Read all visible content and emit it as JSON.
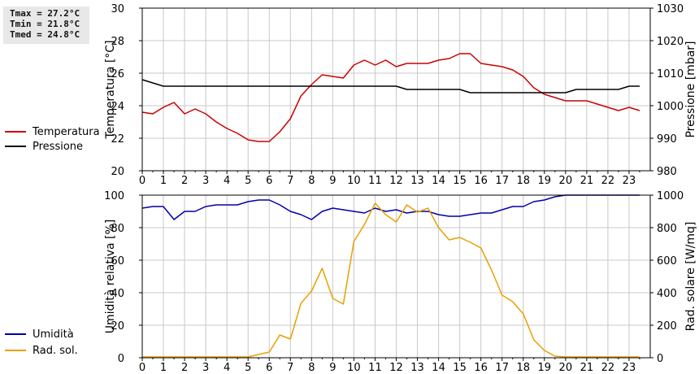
{
  "stats": {
    "tmax": "Tmax = 27.2°C",
    "tmin": "Tmin = 21.8°C",
    "tmed": "Tmed = 24.8°C"
  },
  "colors": {
    "temperature": "#cc0000",
    "pressure": "#000000",
    "humidity": "#0000aa",
    "solar": "#e8a000",
    "grid": "#c8c8c8"
  },
  "chart_data": [
    {
      "type": "line",
      "title": "",
      "xlabel": "",
      "ylabel": "Temperatura [°C]",
      "y2label": "Pressione [mbar]",
      "xlim": [
        0,
        24
      ],
      "ylim": [
        20,
        30
      ],
      "y2lim": [
        980,
        1030
      ],
      "xticks": [
        "0",
        "1",
        "2",
        "3",
        "4",
        "5",
        "6",
        "7",
        "8",
        "9",
        "10",
        "11",
        "12",
        "13",
        "14",
        "15",
        "16",
        "17",
        "18",
        "19",
        "20",
        "21",
        "22",
        "23"
      ],
      "yticks": [
        "20",
        "22",
        "24",
        "26",
        "28",
        "30"
      ],
      "y2ticks": [
        "980",
        "990",
        "1000",
        "1010",
        "1020",
        "1030"
      ],
      "grid": true,
      "legend_position": "left",
      "series": [
        {
          "name": "Temperatura",
          "axis": "left",
          "x": [
            0,
            0.5,
            1,
            1.5,
            2,
            2.5,
            3,
            3.5,
            4,
            4.5,
            5,
            5.5,
            6,
            6.5,
            7,
            7.5,
            8,
            8.5,
            9,
            9.5,
            10,
            10.5,
            11,
            11.5,
            12,
            12.5,
            13,
            13.5,
            14,
            14.5,
            15,
            15.5,
            16,
            16.5,
            17,
            17.5,
            18,
            18.5,
            19,
            19.5,
            20,
            20.5,
            21,
            21.5,
            22,
            22.5,
            23,
            23.5
          ],
          "y": [
            23.6,
            23.5,
            23.9,
            24.2,
            23.5,
            23.8,
            23.5,
            23.0,
            22.6,
            22.3,
            21.9,
            21.8,
            21.8,
            22.4,
            23.2,
            24.6,
            25.3,
            25.9,
            25.8,
            25.7,
            26.5,
            26.8,
            26.5,
            26.8,
            26.4,
            26.6,
            26.6,
            26.6,
            26.8,
            26.9,
            27.2,
            27.2,
            26.6,
            26.5,
            26.4,
            26.2,
            25.8,
            25.1,
            24.7,
            24.5,
            24.3,
            24.3,
            24.3,
            24.1,
            23.9,
            23.7,
            23.9,
            23.7
          ]
        },
        {
          "name": "Pressione",
          "axis": "right",
          "x": [
            0,
            0.5,
            1,
            1.5,
            2,
            3,
            4,
            5,
            6,
            7,
            8,
            9,
            10,
            11,
            12,
            12.5,
            13,
            14,
            15,
            15.5,
            16,
            17,
            18,
            19,
            19.5,
            20,
            20.5,
            21,
            22,
            22.5,
            23,
            23.5
          ],
          "y": [
            1008,
            1007,
            1006,
            1006,
            1006,
            1006,
            1006,
            1006,
            1006,
            1006,
            1006,
            1006,
            1006,
            1006,
            1006,
            1005,
            1005,
            1005,
            1005,
            1004,
            1004,
            1004,
            1004,
            1004,
            1004,
            1004,
            1005,
            1005,
            1005,
            1005,
            1006,
            1006
          ]
        }
      ]
    },
    {
      "type": "line",
      "title": "",
      "xlabel": "",
      "ylabel": "Umidità relativa [%]",
      "y2label": "Rad. solare [W/mq]",
      "xlim": [
        0,
        24
      ],
      "ylim": [
        0,
        100
      ],
      "y2lim": [
        0,
        1000
      ],
      "xticks": [
        "0",
        "1",
        "2",
        "3",
        "4",
        "5",
        "6",
        "7",
        "8",
        "9",
        "10",
        "11",
        "12",
        "13",
        "14",
        "15",
        "16",
        "17",
        "18",
        "19",
        "20",
        "21",
        "22",
        "23"
      ],
      "yticks": [
        "0",
        "20",
        "40",
        "60",
        "80",
        "100"
      ],
      "y2ticks": [
        "0",
        "200",
        "400",
        "600",
        "800",
        "1000"
      ],
      "grid": true,
      "legend_position": "left",
      "series": [
        {
          "name": "Umidità",
          "axis": "left",
          "x": [
            0,
            0.5,
            1,
            1.5,
            2,
            2.5,
            3,
            3.5,
            4,
            4.5,
            5,
            5.5,
            6,
            6.5,
            7,
            7.5,
            8,
            8.5,
            9,
            9.5,
            10,
            10.5,
            11,
            11.5,
            12,
            12.5,
            13,
            13.5,
            14,
            14.5,
            15,
            15.5,
            16,
            16.5,
            17,
            17.5,
            18,
            18.5,
            19,
            19.5,
            20,
            20.5,
            21,
            21.5,
            22,
            22.5,
            23,
            23.5
          ],
          "y": [
            92,
            93,
            93,
            85,
            90,
            90,
            93,
            94,
            94,
            94,
            96,
            97,
            97,
            94,
            90,
            88,
            85,
            90,
            92,
            91,
            90,
            89,
            92,
            90,
            91,
            89,
            90,
            90,
            88,
            87,
            87,
            88,
            89,
            89,
            91,
            93,
            93,
            96,
            97,
            99,
            100,
            100,
            100,
            100,
            100,
            100,
            100,
            100
          ]
        },
        {
          "name": "Rad. sol.",
          "axis": "right",
          "x": [
            0,
            0.5,
            1,
            1.5,
            2,
            2.5,
            3,
            3.5,
            4,
            4.5,
            5,
            5.5,
            6,
            6.5,
            7,
            7.5,
            8,
            8.5,
            9,
            9.5,
            10,
            10.5,
            11,
            11.5,
            12,
            12.5,
            13,
            13.5,
            14,
            14.5,
            15,
            15.5,
            16,
            16.5,
            17,
            17.5,
            18,
            18.5,
            19,
            19.5,
            20,
            20.5,
            21,
            21.5,
            22,
            22.5,
            23,
            23.5
          ],
          "y": [
            5,
            5,
            5,
            5,
            5,
            5,
            5,
            5,
            5,
            5,
            5,
            20,
            35,
            140,
            115,
            335,
            410,
            550,
            365,
            330,
            715,
            820,
            950,
            880,
            835,
            940,
            895,
            920,
            800,
            725,
            740,
            710,
            675,
            540,
            385,
            345,
            270,
            110,
            45,
            10,
            5,
            5,
            5,
            5,
            5,
            5,
            5,
            5
          ]
        }
      ]
    }
  ]
}
